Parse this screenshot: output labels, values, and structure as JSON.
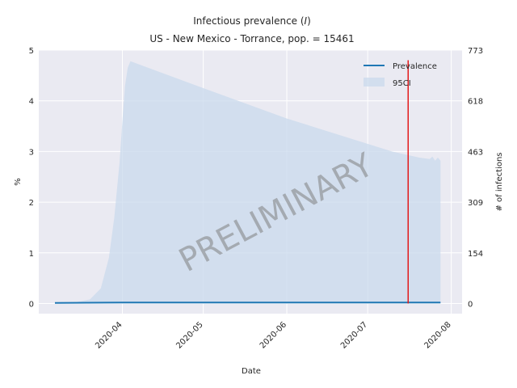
{
  "chart_data": {
    "type": "line",
    "title_line1_prefix": "Infectious prevalence (",
    "title_line1_symbol": "I",
    "title_line1_suffix": ")",
    "title_line2": "US - New Mexico - Torrance, pop. = 15461",
    "xlabel": "Date",
    "ylabel_left": "%",
    "ylabel_right": "# of infections",
    "watermark": "PRELIMINARY",
    "x_ticks": [
      "2020-04",
      "2020-05",
      "2020-06",
      "2020-07",
      "2020-08"
    ],
    "y_ticks_left": [
      "0",
      "1",
      "2",
      "3",
      "4",
      "5"
    ],
    "y_ticks_right": [
      "0",
      "154",
      "309",
      "463",
      "618",
      "773"
    ],
    "ylim_left": [
      -0.2,
      5.0
    ],
    "legend": {
      "placement": "upper right",
      "entries": [
        "Prevalence",
        "95CI"
      ]
    },
    "grid": true,
    "colors": {
      "background": "#eaeaf2",
      "prevalence_line": "#1f77b4",
      "band": "#c9d9ec",
      "vertical_marker": "#e31a1c"
    },
    "vertical_marker_date": "2020-07-16",
    "series": [
      {
        "name": "Prevalence",
        "x": [
          "2020-03-07",
          "2020-04-01",
          "2020-05-01",
          "2020-06-01",
          "2020-07-01",
          "2020-07-28"
        ],
        "y": [
          0.01,
          0.02,
          0.02,
          0.02,
          0.02,
          0.02
        ]
      },
      {
        "name": "95CI",
        "x": [
          "2020-03-07",
          "2020-03-15",
          "2020-03-20",
          "2020-03-24",
          "2020-03-27",
          "2020-03-29",
          "2020-03-31",
          "2020-04-01",
          "2020-04-02",
          "2020-04-03",
          "2020-04-04",
          "2020-05-01",
          "2020-06-01",
          "2020-07-01",
          "2020-07-10",
          "2020-07-20",
          "2020-07-24",
          "2020-07-25",
          "2020-07-26",
          "2020-07-27",
          "2020-07-28"
        ],
        "lower": [
          0,
          0,
          0,
          0,
          0,
          0,
          0,
          0,
          0,
          0,
          0,
          0,
          0,
          0,
          0,
          0,
          0,
          0,
          0,
          0,
          0
        ],
        "upper": [
          0.0,
          0.03,
          0.08,
          0.3,
          0.9,
          1.7,
          2.8,
          3.6,
          4.3,
          4.65,
          4.78,
          4.25,
          3.65,
          3.15,
          3.0,
          2.88,
          2.85,
          2.9,
          2.82,
          2.88,
          2.82
        ]
      }
    ]
  }
}
